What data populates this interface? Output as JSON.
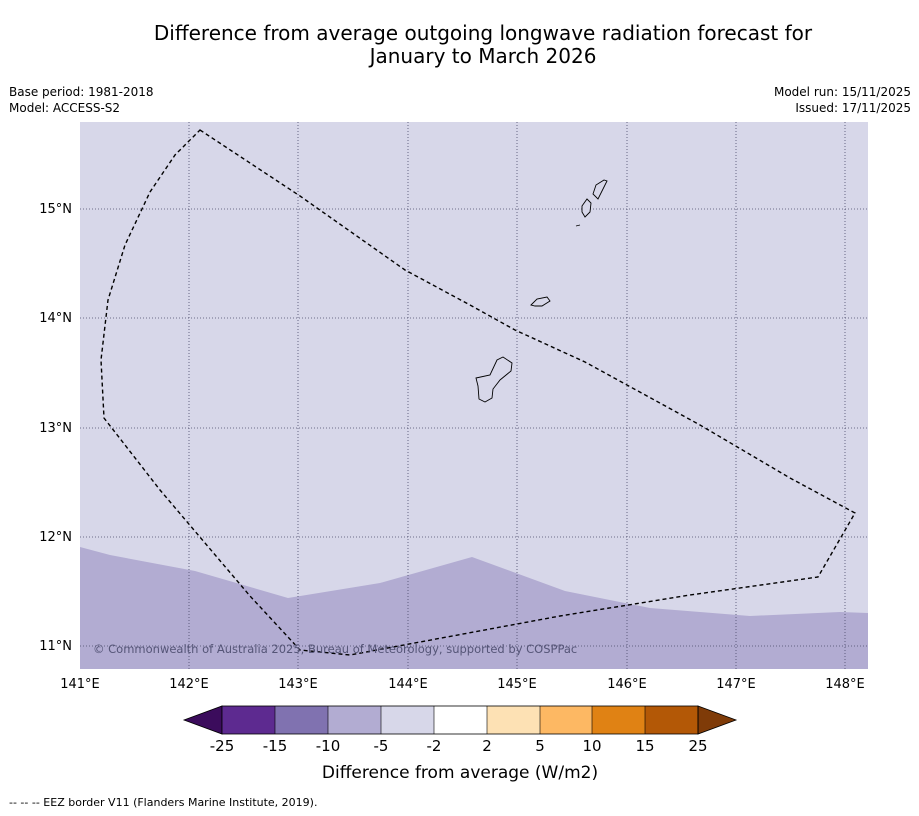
{
  "title": {
    "line1": "Difference from average outgoing longwave radiation forecast for",
    "line2": "January to March 2026"
  },
  "meta": {
    "base_period": "Base period: 1981-2018",
    "model": "Model: ACCESS-S2",
    "model_run": "Model run: 15/11/2025",
    "issued": "Issued: 17/11/2025"
  },
  "map": {
    "lon_labels": [
      "141°E",
      "142°E",
      "143°E",
      "144°E",
      "145°E",
      "146°E",
      "147°E",
      "148°E"
    ],
    "lat_labels": [
      "15°N",
      "14°N",
      "13°N",
      "12°N",
      "11°N"
    ],
    "copyright": "© Commonwealth of Australia 2025, Bureau of Meteorology, supported by COSPPac",
    "background_color": "#d7d7e9",
    "anomaly_color": "#b2acd2",
    "features": [
      "eez-border",
      "guam-island",
      "rota-island",
      "tinian-saipan-islands"
    ]
  },
  "colorbar": {
    "title": "Difference from average (W/m2)",
    "ticks": [
      "-25",
      "-15",
      "-10",
      "-5",
      "-2",
      "2",
      "5",
      "10",
      "15",
      "25"
    ],
    "colors": [
      "#3b0c5c",
      "#5d2a90",
      "#8072b0",
      "#b2acd2",
      "#d7d7e9",
      "#ffffff",
      "#fde1b4",
      "#fdb863",
      "#e08214",
      "#b35806",
      "#7f3b08"
    ]
  },
  "footer": "--  --  -- EEZ border V11 (Flanders Marine Institute, 2019)."
}
